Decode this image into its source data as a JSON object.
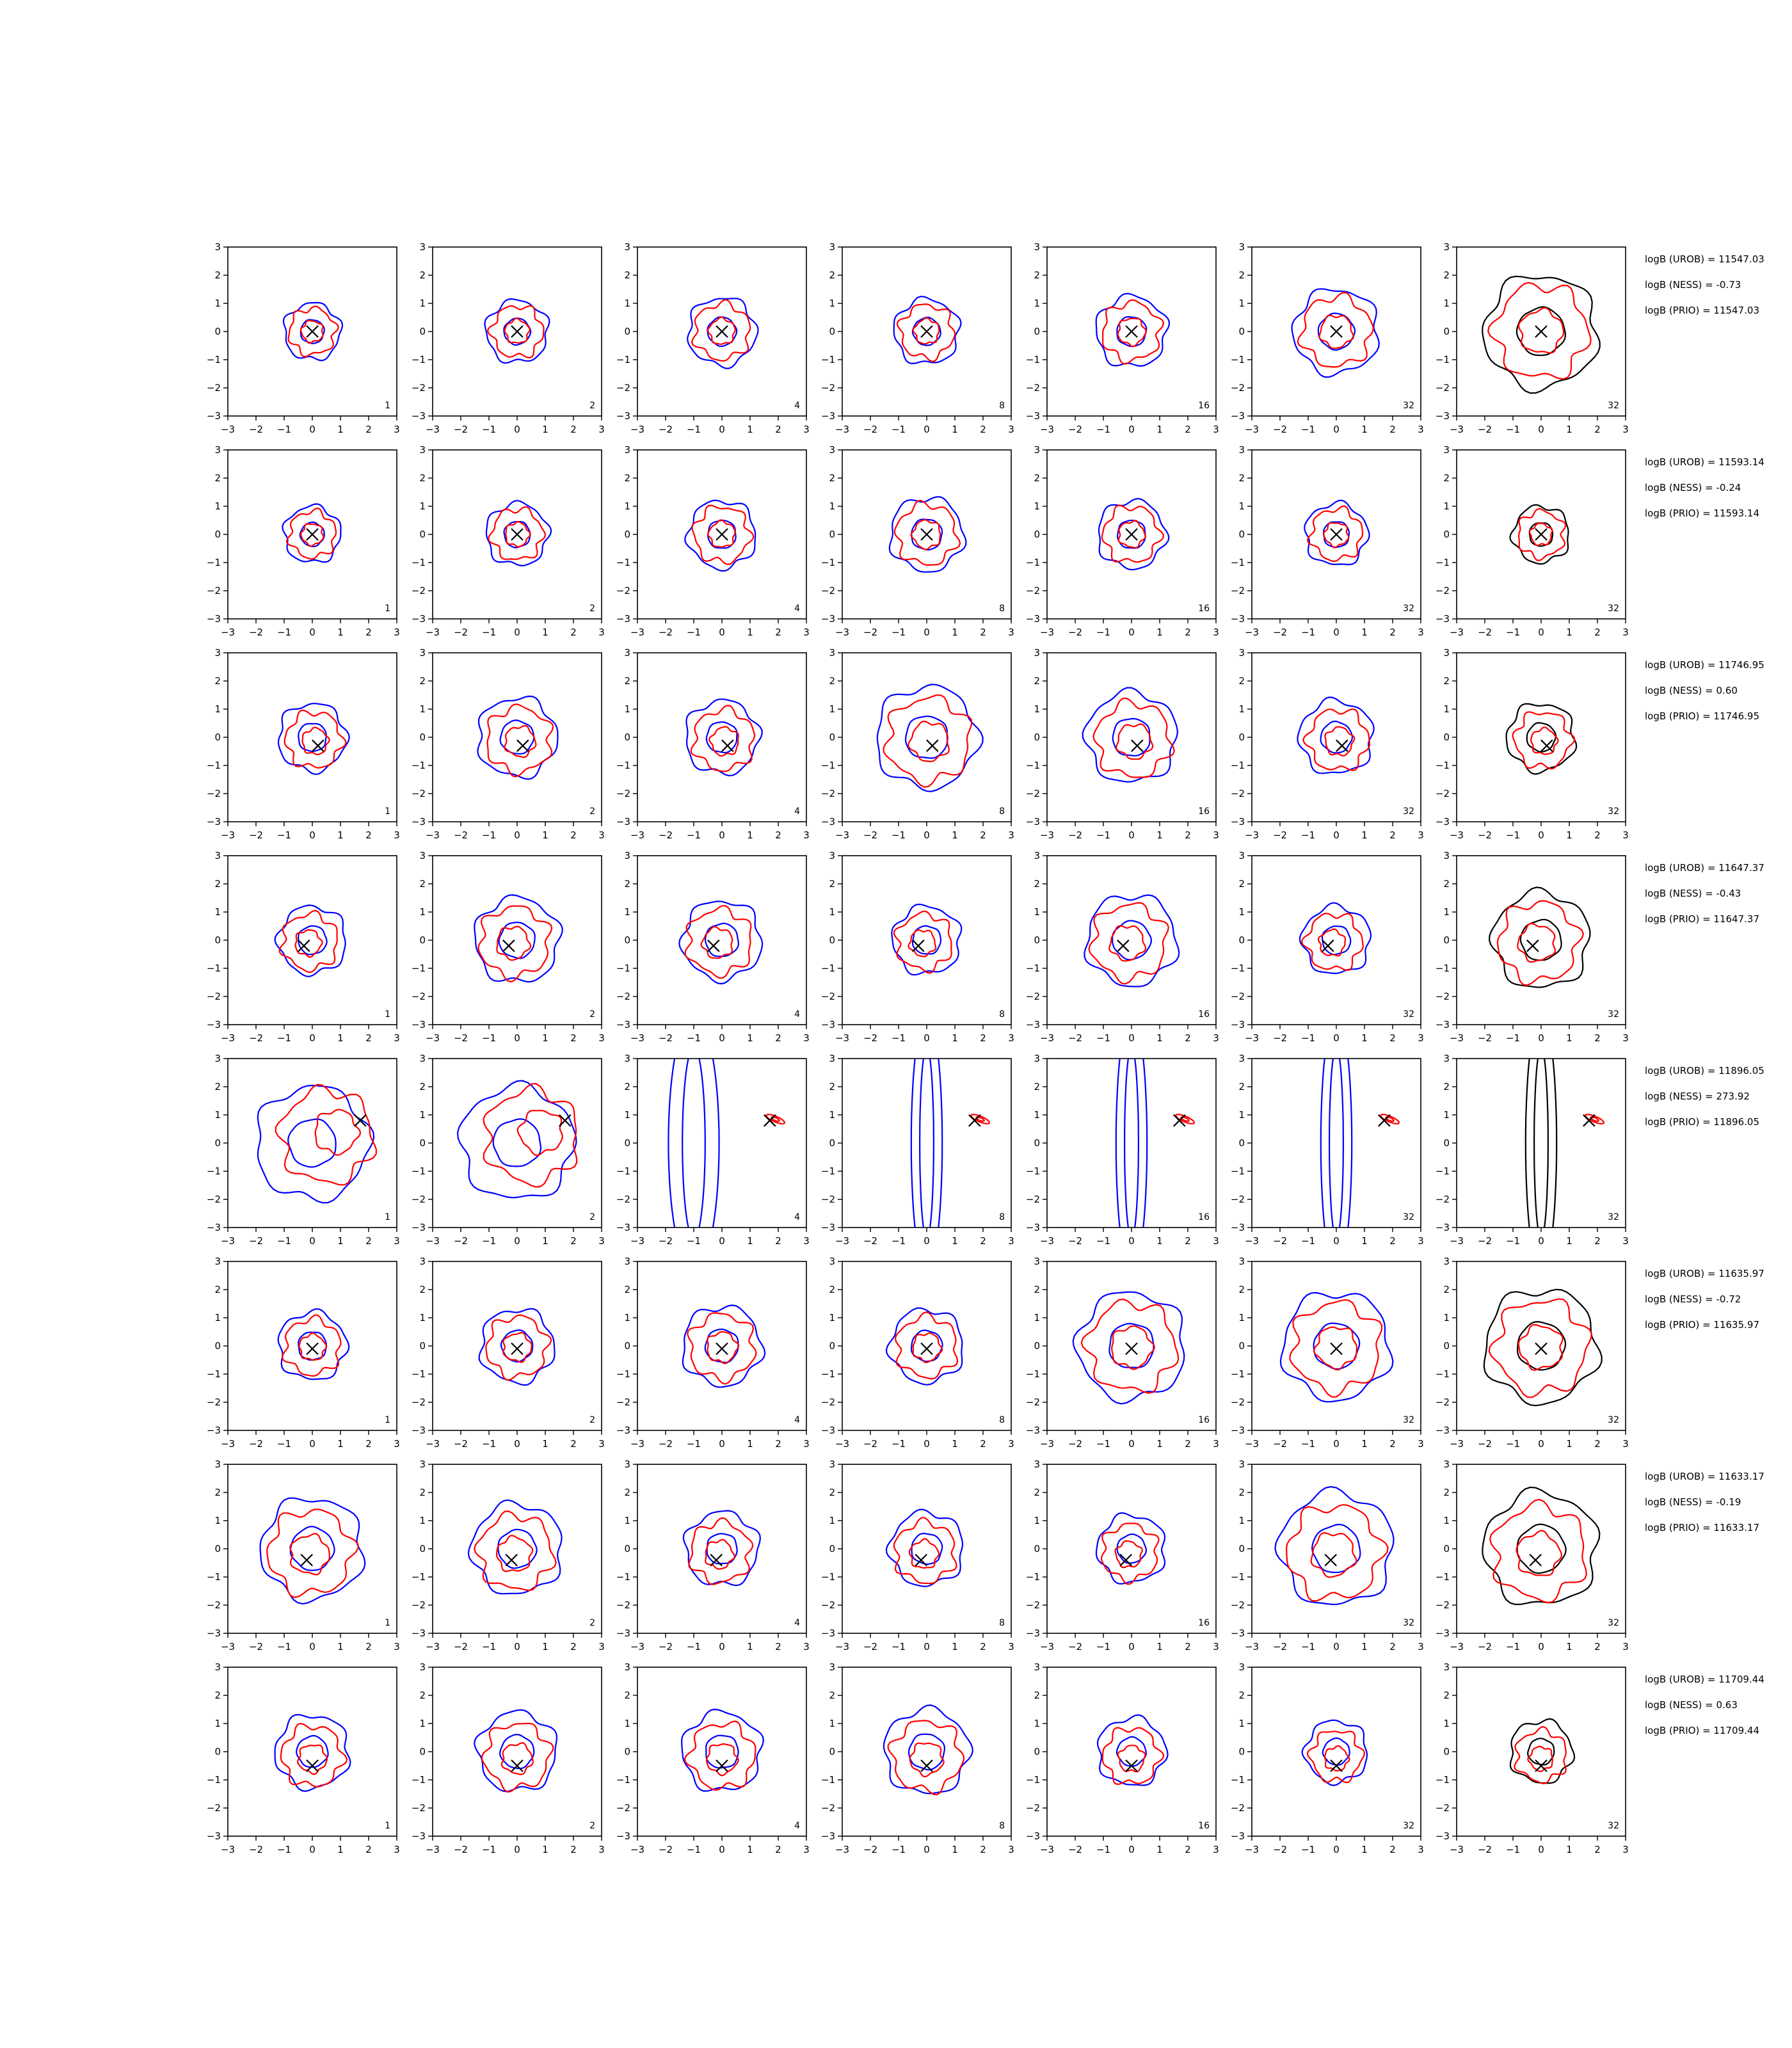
{
  "chart_data": {
    "type": "contour",
    "grid": false,
    "xlim": [
      -3,
      3
    ],
    "ylim": [
      -3,
      3
    ],
    "ticks": [
      "−3",
      "−2",
      "−1",
      "0",
      "1",
      "2",
      "3"
    ],
    "colors": {
      "series_a": "#0000ff",
      "series_b": "#ff0000",
      "series_c": "#000000",
      "marker": "#000000"
    },
    "rows": [
      {
        "marker": [
          0.0,
          0.0
        ],
        "panel_labels": [
          "1",
          "2",
          "4",
          "8",
          "16",
          "32",
          "32"
        ],
        "spread": [
          1.0,
          1.1,
          1.2,
          1.15,
          1.25,
          1.5,
          2.0
        ],
        "annotations": [
          "logB (UROB) = 11547.03",
          "logB (NESS) = -0.73",
          "logB (PRIO) = 11547.03"
        ]
      },
      {
        "marker": [
          0.0,
          0.0
        ],
        "panel_labels": [
          "1",
          "2",
          "4",
          "8",
          "16",
          "32",
          "32"
        ],
        "spread": [
          1.0,
          1.1,
          1.2,
          1.3,
          1.2,
          1.1,
          1.0
        ],
        "annotations": [
          "logB (UROB) = 11593.14",
          "logB (NESS) = -0.24",
          "logB (PRIO) = 11593.14"
        ]
      },
      {
        "marker": [
          0.2,
          -0.3
        ],
        "panel_labels": [
          "1",
          "2",
          "4",
          "8",
          "16",
          "32",
          "32"
        ],
        "spread": [
          1.2,
          1.4,
          1.3,
          1.8,
          1.6,
          1.3,
          1.2
        ],
        "annotations": [
          "logB (UROB) = 11746.95",
          "logB (NESS) = 0.60",
          "logB (PRIO) = 11746.95"
        ]
      },
      {
        "marker": [
          -0.3,
          -0.2
        ],
        "panel_labels": [
          "1",
          "2",
          "4",
          "8",
          "16",
          "32",
          "32"
        ],
        "spread": [
          1.2,
          1.5,
          1.4,
          1.2,
          1.6,
          1.2,
          1.7
        ],
        "annotations": [
          "logB (UROB) = 11647.37",
          "logB (NESS) = -0.43",
          "logB (PRIO) = 11647.37"
        ]
      },
      {
        "marker": [
          1.7,
          0.8
        ],
        "panel_labels": [
          "1",
          "2",
          "4",
          "8",
          "16",
          "32",
          "32"
        ],
        "spread": [
          2.0,
          2.0,
          2.0,
          2.0,
          2.0,
          2.0,
          2.0
        ],
        "annotations": [
          "logB (UROB) = 11896.05",
          "logB (NESS) = 273.92",
          "logB (PRIO) = 11896.05"
        ]
      },
      {
        "marker": [
          0.0,
          -0.1
        ],
        "panel_labels": [
          "1",
          "2",
          "4",
          "8",
          "16",
          "32",
          "32"
        ],
        "spread": [
          1.2,
          1.3,
          1.4,
          1.3,
          1.9,
          1.9,
          2.0
        ],
        "annotations": [
          "logB (UROB) = 11635.97",
          "logB (NESS) = -0.72",
          "logB (PRIO) = 11635.97"
        ]
      },
      {
        "marker": [
          -0.2,
          -0.4
        ],
        "panel_labels": [
          "1",
          "2",
          "4",
          "8",
          "16",
          "32",
          "32"
        ],
        "spread": [
          1.8,
          1.6,
          1.3,
          1.3,
          1.2,
          2.0,
          2.0
        ],
        "annotations": [
          "logB (UROB) = 11633.17",
          "logB (NESS) = -0.19",
          "logB (PRIO) = 11633.17"
        ]
      },
      {
        "marker": [
          0.0,
          -0.5
        ],
        "panel_labels": [
          "1",
          "2",
          "4",
          "8",
          "16",
          "32",
          "32"
        ],
        "spread": [
          1.3,
          1.4,
          1.4,
          1.5,
          1.2,
          1.1,
          1.1
        ],
        "annotations": [
          "logB (UROB) = 11709.44",
          "logB (NESS) = 0.63",
          "logB (PRIO) = 11709.44"
        ]
      }
    ]
  }
}
